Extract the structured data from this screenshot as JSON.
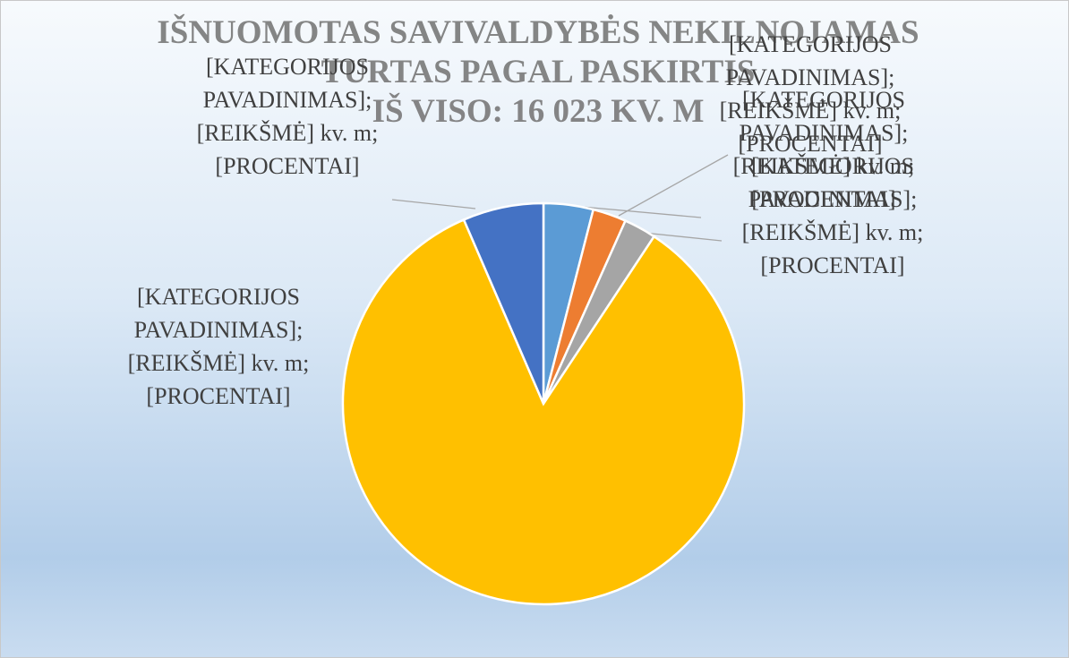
{
  "chart_data": {
    "type": "pie",
    "title": "IŠNUOMOTAS SAVIVALDYBĖS NEKILNOJAMAS\nTURTAS PAGAL PASKIRTIS\nIŠ VISO: 16 023 KV. M",
    "values": [
      4,
      2.7,
      2.6,
      84.2,
      6.5
    ],
    "colors": [
      "#5b9bd5",
      "#ed7d31",
      "#a5a5a5",
      "#ffc000",
      "#4472c4"
    ],
    "data_labels": [
      "[KATEGORIJOS PAVADINIMAS]; [REIKŠMĖ] kv. m; [PROCENTAI]",
      "[KATEGORIJOS PAVADINIMAS]; [REIKŠMĖ] kv. m; [PROCENTAI]",
      "[KATEGORIJOS PAVADINIMAS]; [REIKŠMĖ] kv. m; [PROCENTAI]",
      "[KATEGORIJOS PAVADINIMAS]; [REIKŠMĖ] kv. m; [PROCENTAI]",
      "[KATEGORIJOS PAVADINIMAS]; [REIKŠMĖ] kv. m; [PROCENTAI]"
    ]
  }
}
